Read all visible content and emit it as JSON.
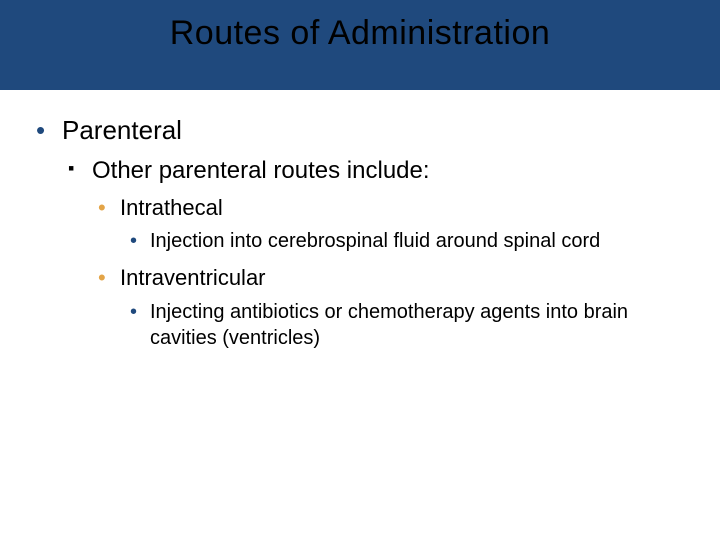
{
  "slide": {
    "title": "Routes of Administration",
    "title_background": "#1f497d",
    "title_color": "#000000",
    "title_fontsize": 34,
    "background": "#ffffff",
    "bullets": {
      "lvl1_color": "#1f497d",
      "lvl2_color": "#000000",
      "lvl3_color": "#e3a447",
      "lvl4_color": "#1f497d"
    },
    "content": {
      "l1_a": "Parenteral",
      "l2_a": "Other parenteral routes include:",
      "l3_a": "Intrathecal",
      "l4_a": "Injection into cerebrospinal fluid around spinal cord",
      "l3_b": "Intraventricular",
      "l4_b": "Injecting antibiotics or chemotherapy agents into brain cavities (ventricles)"
    }
  }
}
